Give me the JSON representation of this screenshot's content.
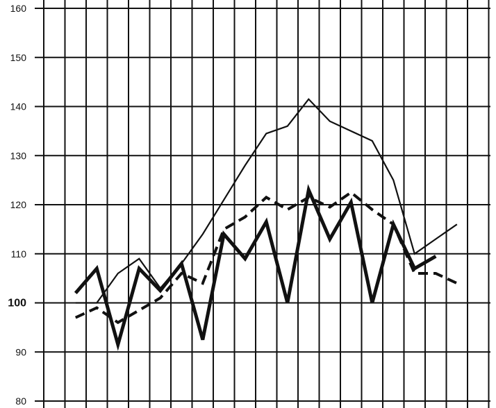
{
  "chart_data": {
    "type": "line",
    "title": "",
    "xlabel": "",
    "ylabel": "",
    "ylim": [
      80,
      160
    ],
    "yticks": [
      80,
      90,
      100,
      110,
      120,
      130,
      140,
      150,
      160
    ],
    "ytick_labels": [
      "80",
      "90",
      "100",
      "110",
      "120",
      "130",
      "140",
      "150",
      "160"
    ],
    "grid": true,
    "x": [
      1,
      2,
      3,
      4,
      5,
      6,
      7,
      8,
      9,
      10,
      11,
      12,
      13,
      14,
      15,
      16,
      17,
      18,
      19,
      20
    ],
    "series": [
      {
        "style": "thin-solid",
        "color": "#111111",
        "values": [
          100,
          100,
          106,
          109,
          103,
          108,
          114,
          121,
          128,
          134.5,
          136,
          141.5,
          137,
          135,
          133,
          125,
          110,
          113,
          116,
          null
        ]
      },
      {
        "style": "thick-solid",
        "color": "#111111",
        "values": [
          102,
          107,
          91.5,
          107,
          102.5,
          108,
          92.5,
          114,
          109,
          116.5,
          100,
          123,
          113,
          120.5,
          100,
          116,
          107,
          109.5,
          null,
          null
        ]
      },
      {
        "style": "dashed",
        "color": "#111111",
        "values": [
          97,
          99,
          96,
          98.5,
          101,
          106,
          104,
          115,
          117.5,
          121.5,
          119,
          121.5,
          119.5,
          122.5,
          119,
          116,
          106,
          106,
          104,
          null
        ]
      }
    ]
  }
}
